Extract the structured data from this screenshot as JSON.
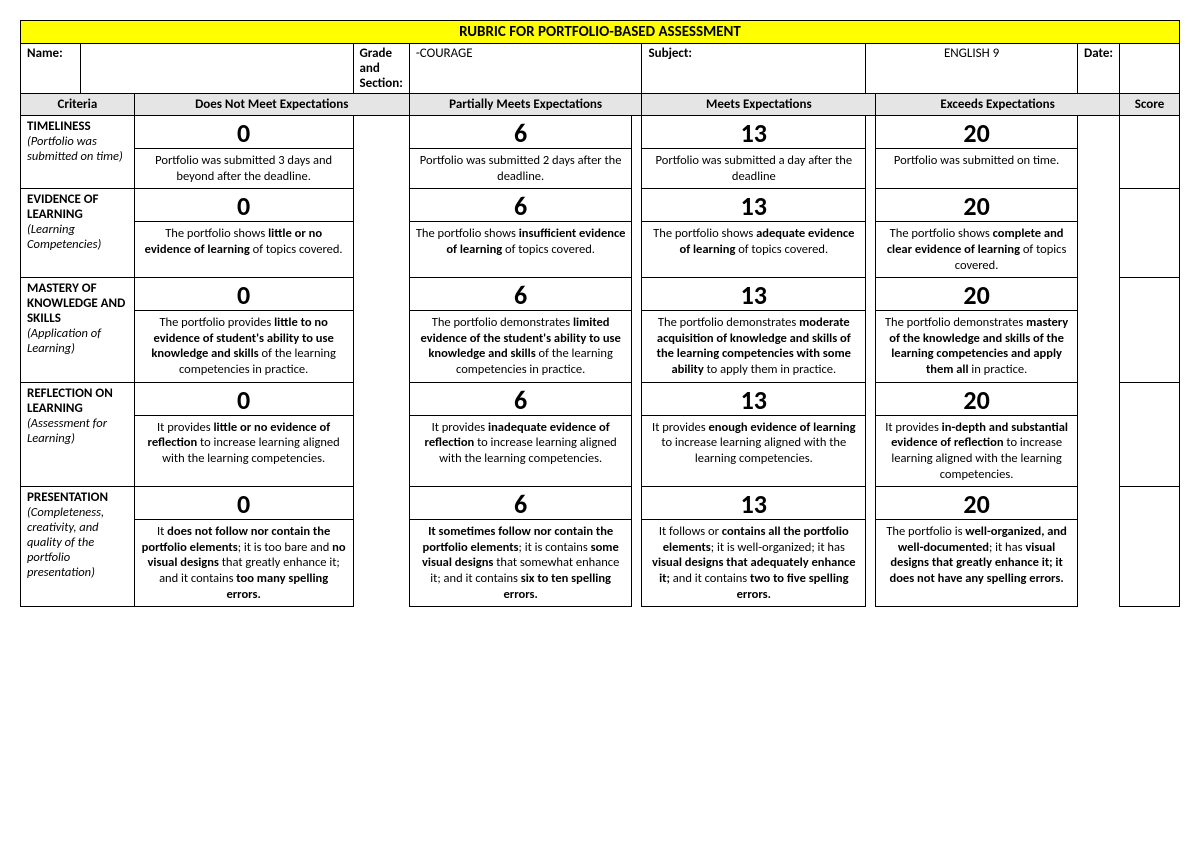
{
  "title": "RUBRIC FOR PORTFOLIO-BASED ASSESSMENT",
  "info": {
    "name_label": "Name:",
    "name_value": "",
    "grade_label": "Grade and Section:",
    "grade_value": "-COURAGE",
    "subject_label": "Subject:",
    "subject_value": "ENGLISH 9",
    "date_label": "Date:",
    "date_value": ""
  },
  "headers": {
    "criteria": "Criteria",
    "l1": "Does Not Meet Expectations",
    "l2": "Partially Meets Expectations",
    "l3": "Meets Expectations",
    "l4": "Exceeds Expectations",
    "score": "Score"
  },
  "scores": {
    "l1": "0",
    "l2": "6",
    "l3": "13",
    "l4": "20"
  },
  "rows": [
    {
      "title": "TIMELINESS",
      "sub": "(Portfolio was submitted on time)",
      "d1": "Portfolio was submitted 3 days and beyond after the deadline.",
      "d2": "Portfolio was submitted 2 days after the deadline.",
      "d3": "Portfolio was submitted a day after the deadline",
      "d4": "Portfolio was submitted on time."
    },
    {
      "title": "EVIDENCE OF LEARNING",
      "sub": "(Learning Competencies)",
      "d1": "The portfolio shows <b>little or no evidence of learning</b> of topics covered.",
      "d2": "The portfolio shows <b>insufficient evidence of learning</b> of topics covered.",
      "d3": "The portfolio shows <b>adequate evidence of learning</b> of topics covered.",
      "d4": "The portfolio shows <b>complete and clear evidence of learning</b> of topics covered."
    },
    {
      "title": "MASTERY OF KNOWLEDGE AND SKILLS",
      "sub": "(Application of Learning)",
      "d1": "The portfolio provides <b>little to no evidence of student's ability to use knowledge and skills</b> of the learning competencies in practice.",
      "d2": "The portfolio demonstrates <b>limited evidence of the student's ability to use knowledge and skills</b> of the learning competencies in practice.",
      "d3": "The portfolio demonstrates <b>moderate acquisition of knowledge and skills of the learning competencies with some ability</b> to apply them in practice.",
      "d4": "The portfolio demonstrates <b>mastery of the knowledge and skills of the learning competencies and apply them all</b> in practice."
    },
    {
      "title": "REFLECTION ON LEARNING",
      "sub": "(Assessment for Learning)",
      "d1": "It provides <b>little or no evidence of reflection</b> to increase learning aligned with the learning competencies.",
      "d2": "It provides <b>inadequate evidence of reflection</b> to increase learning aligned with the learning competencies.",
      "d3": "It provides <b>enough evidence of learning</b> to increase learning aligned with the learning competencies.",
      "d4": "It provides <b>in-depth and substantial evidence of reflection</b> to increase learning aligned with the learning competencies."
    },
    {
      "title": "PRESENTATION",
      "sub": "(Completeness, creativity, and quality of the portfolio presentation)",
      "d1": "It <b>does not follow nor contain the portfolio elements</b>; it is too bare and <b>no visual designs</b> that greatly enhance it; and it contains <b>too many spelling errors.</b>",
      "d2": "<b>It sometimes follow nor contain the portfolio elements</b>; it is contains <b>some visual designs</b> that somewhat enhance it; and it contains <b>six to ten spelling errors.</b>",
      "d3": "It follows or <b>contains all the portfolio elements</b>; it is well-organized; it has <b>visual designs that adequately enhance it;</b> and it contains <b>two to five spelling errors.</b>",
      "d4": "The portfolio is <b>well-organized, and well-documented</b>; it has <b>visual designs that greatly enhance it; it does not have any spelling errors.</b>"
    }
  ],
  "style": {
    "title_bg": "#ffff00",
    "header_bg": "#e5e5e5",
    "border_color": "#000000",
    "font_family": "Calibri, Arial, sans-serif"
  }
}
